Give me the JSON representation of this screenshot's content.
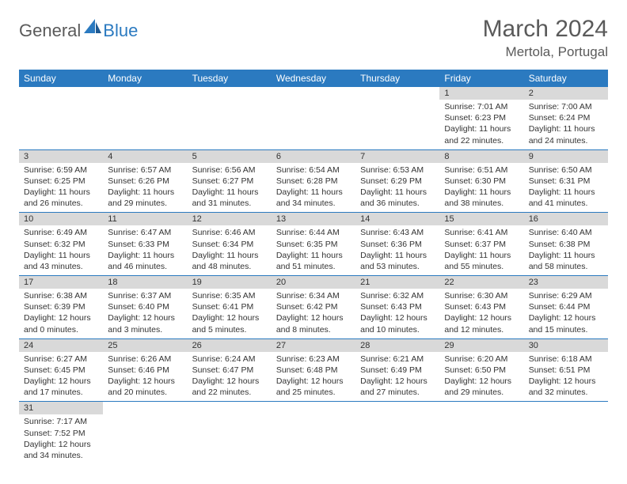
{
  "logo": {
    "part1": "General",
    "part2": "Blue"
  },
  "title": "March 2024",
  "location": "Mertola, Portugal",
  "colors": {
    "header_bg": "#2b7ac0",
    "header_text": "#ffffff",
    "daynum_bg": "#d9d9d9",
    "border": "#2b7ac0",
    "title_text": "#5a5a5a"
  },
  "weekdays": [
    "Sunday",
    "Monday",
    "Tuesday",
    "Wednesday",
    "Thursday",
    "Friday",
    "Saturday"
  ],
  "weeks": [
    [
      null,
      null,
      null,
      null,
      null,
      {
        "n": "1",
        "sr": "Sunrise: 7:01 AM",
        "ss": "Sunset: 6:23 PM",
        "dl1": "Daylight: 11 hours",
        "dl2": "and 22 minutes."
      },
      {
        "n": "2",
        "sr": "Sunrise: 7:00 AM",
        "ss": "Sunset: 6:24 PM",
        "dl1": "Daylight: 11 hours",
        "dl2": "and 24 minutes."
      }
    ],
    [
      {
        "n": "3",
        "sr": "Sunrise: 6:59 AM",
        "ss": "Sunset: 6:25 PM",
        "dl1": "Daylight: 11 hours",
        "dl2": "and 26 minutes."
      },
      {
        "n": "4",
        "sr": "Sunrise: 6:57 AM",
        "ss": "Sunset: 6:26 PM",
        "dl1": "Daylight: 11 hours",
        "dl2": "and 29 minutes."
      },
      {
        "n": "5",
        "sr": "Sunrise: 6:56 AM",
        "ss": "Sunset: 6:27 PM",
        "dl1": "Daylight: 11 hours",
        "dl2": "and 31 minutes."
      },
      {
        "n": "6",
        "sr": "Sunrise: 6:54 AM",
        "ss": "Sunset: 6:28 PM",
        "dl1": "Daylight: 11 hours",
        "dl2": "and 34 minutes."
      },
      {
        "n": "7",
        "sr": "Sunrise: 6:53 AM",
        "ss": "Sunset: 6:29 PM",
        "dl1": "Daylight: 11 hours",
        "dl2": "and 36 minutes."
      },
      {
        "n": "8",
        "sr": "Sunrise: 6:51 AM",
        "ss": "Sunset: 6:30 PM",
        "dl1": "Daylight: 11 hours",
        "dl2": "and 38 minutes."
      },
      {
        "n": "9",
        "sr": "Sunrise: 6:50 AM",
        "ss": "Sunset: 6:31 PM",
        "dl1": "Daylight: 11 hours",
        "dl2": "and 41 minutes."
      }
    ],
    [
      {
        "n": "10",
        "sr": "Sunrise: 6:49 AM",
        "ss": "Sunset: 6:32 PM",
        "dl1": "Daylight: 11 hours",
        "dl2": "and 43 minutes."
      },
      {
        "n": "11",
        "sr": "Sunrise: 6:47 AM",
        "ss": "Sunset: 6:33 PM",
        "dl1": "Daylight: 11 hours",
        "dl2": "and 46 minutes."
      },
      {
        "n": "12",
        "sr": "Sunrise: 6:46 AM",
        "ss": "Sunset: 6:34 PM",
        "dl1": "Daylight: 11 hours",
        "dl2": "and 48 minutes."
      },
      {
        "n": "13",
        "sr": "Sunrise: 6:44 AM",
        "ss": "Sunset: 6:35 PM",
        "dl1": "Daylight: 11 hours",
        "dl2": "and 51 minutes."
      },
      {
        "n": "14",
        "sr": "Sunrise: 6:43 AM",
        "ss": "Sunset: 6:36 PM",
        "dl1": "Daylight: 11 hours",
        "dl2": "and 53 minutes."
      },
      {
        "n": "15",
        "sr": "Sunrise: 6:41 AM",
        "ss": "Sunset: 6:37 PM",
        "dl1": "Daylight: 11 hours",
        "dl2": "and 55 minutes."
      },
      {
        "n": "16",
        "sr": "Sunrise: 6:40 AM",
        "ss": "Sunset: 6:38 PM",
        "dl1": "Daylight: 11 hours",
        "dl2": "and 58 minutes."
      }
    ],
    [
      {
        "n": "17",
        "sr": "Sunrise: 6:38 AM",
        "ss": "Sunset: 6:39 PM",
        "dl1": "Daylight: 12 hours",
        "dl2": "and 0 minutes."
      },
      {
        "n": "18",
        "sr": "Sunrise: 6:37 AM",
        "ss": "Sunset: 6:40 PM",
        "dl1": "Daylight: 12 hours",
        "dl2": "and 3 minutes."
      },
      {
        "n": "19",
        "sr": "Sunrise: 6:35 AM",
        "ss": "Sunset: 6:41 PM",
        "dl1": "Daylight: 12 hours",
        "dl2": "and 5 minutes."
      },
      {
        "n": "20",
        "sr": "Sunrise: 6:34 AM",
        "ss": "Sunset: 6:42 PM",
        "dl1": "Daylight: 12 hours",
        "dl2": "and 8 minutes."
      },
      {
        "n": "21",
        "sr": "Sunrise: 6:32 AM",
        "ss": "Sunset: 6:43 PM",
        "dl1": "Daylight: 12 hours",
        "dl2": "and 10 minutes."
      },
      {
        "n": "22",
        "sr": "Sunrise: 6:30 AM",
        "ss": "Sunset: 6:43 PM",
        "dl1": "Daylight: 12 hours",
        "dl2": "and 12 minutes."
      },
      {
        "n": "23",
        "sr": "Sunrise: 6:29 AM",
        "ss": "Sunset: 6:44 PM",
        "dl1": "Daylight: 12 hours",
        "dl2": "and 15 minutes."
      }
    ],
    [
      {
        "n": "24",
        "sr": "Sunrise: 6:27 AM",
        "ss": "Sunset: 6:45 PM",
        "dl1": "Daylight: 12 hours",
        "dl2": "and 17 minutes."
      },
      {
        "n": "25",
        "sr": "Sunrise: 6:26 AM",
        "ss": "Sunset: 6:46 PM",
        "dl1": "Daylight: 12 hours",
        "dl2": "and 20 minutes."
      },
      {
        "n": "26",
        "sr": "Sunrise: 6:24 AM",
        "ss": "Sunset: 6:47 PM",
        "dl1": "Daylight: 12 hours",
        "dl2": "and 22 minutes."
      },
      {
        "n": "27",
        "sr": "Sunrise: 6:23 AM",
        "ss": "Sunset: 6:48 PM",
        "dl1": "Daylight: 12 hours",
        "dl2": "and 25 minutes."
      },
      {
        "n": "28",
        "sr": "Sunrise: 6:21 AM",
        "ss": "Sunset: 6:49 PM",
        "dl1": "Daylight: 12 hours",
        "dl2": "and 27 minutes."
      },
      {
        "n": "29",
        "sr": "Sunrise: 6:20 AM",
        "ss": "Sunset: 6:50 PM",
        "dl1": "Daylight: 12 hours",
        "dl2": "and 29 minutes."
      },
      {
        "n": "30",
        "sr": "Sunrise: 6:18 AM",
        "ss": "Sunset: 6:51 PM",
        "dl1": "Daylight: 12 hours",
        "dl2": "and 32 minutes."
      }
    ],
    [
      {
        "n": "31",
        "sr": "Sunrise: 7:17 AM",
        "ss": "Sunset: 7:52 PM",
        "dl1": "Daylight: 12 hours",
        "dl2": "and 34 minutes."
      },
      null,
      null,
      null,
      null,
      null,
      null
    ]
  ]
}
